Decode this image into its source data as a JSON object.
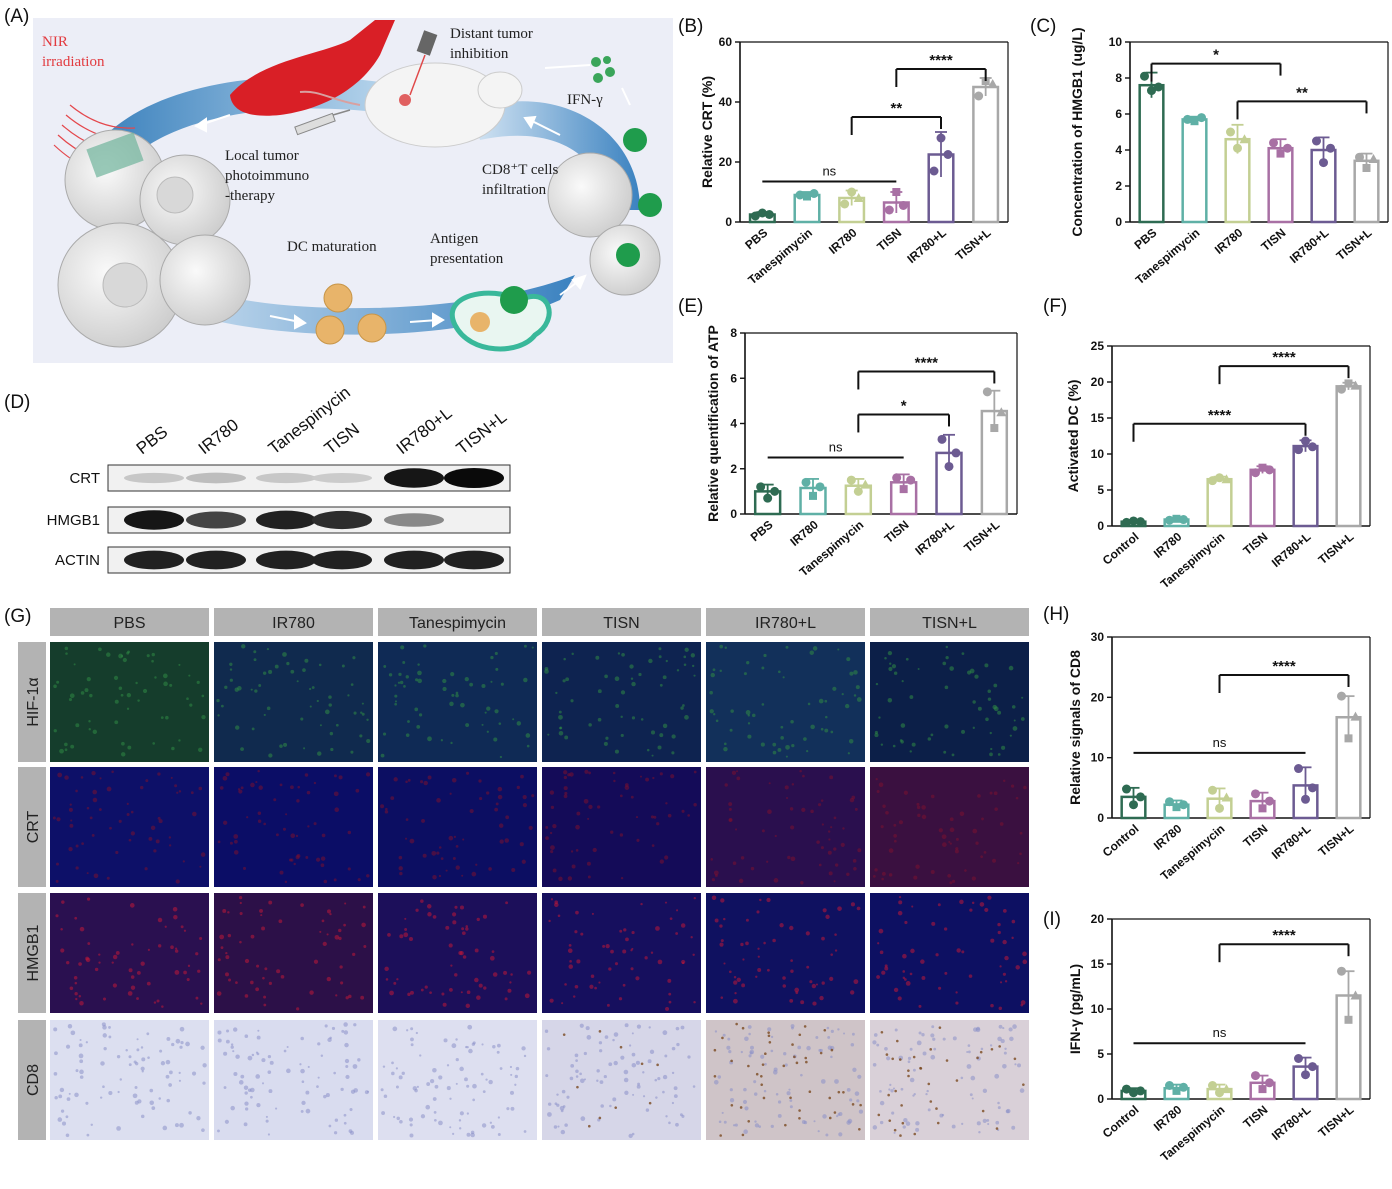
{
  "panels": {
    "A": {
      "letter": "(A)",
      "labels": {
        "nir": "NIR\nirradiation",
        "distant": "Distant tumor\ninhibition",
        "ifn": "IFN-γ",
        "local": "Local tumor\nphotoimmuno\n-therapy",
        "cd8": "CD8⁺T cells\ninfiltration",
        "dc": "DC maturation",
        "antigen": "Antigen\npresentation"
      }
    },
    "D": {
      "letter": "(D)",
      "lanes": [
        "PBS",
        "IR780",
        "Tanespinycin",
        "TISN",
        "IR780+L",
        "TISN+L"
      ],
      "rows": [
        "CRT",
        "HMGB1",
        "ACTIN"
      ]
    },
    "G": {
      "letter": "(G)",
      "columns": [
        "PBS",
        "IR780",
        "Tanespimycin",
        "TISN",
        "IR780+L",
        "TISN+L"
      ],
      "rows": [
        "HIF-1α",
        "CRT",
        "HMGB1",
        "CD8"
      ]
    }
  },
  "colors": [
    "#2e6b52",
    "#5fb0a6",
    "#c3cf93",
    "#a870a4",
    "#6c5b92",
    "#a8a8a8"
  ],
  "chart_data": [
    {
      "id": "B",
      "letter": "(B)",
      "type": "bar",
      "ylabel": "Relative CRT (%)",
      "ylim": [
        0,
        60
      ],
      "yticks": [
        0,
        20,
        40,
        60
      ],
      "categories": [
        "PBS",
        "Tanespimycin",
        "IR780",
        "TISN",
        "IR780+L",
        "TISN+L"
      ],
      "values": [
        2.5,
        9,
        8,
        6.5,
        22.5,
        45
      ],
      "errors": [
        0.8,
        1,
        2.5,
        3.5,
        7.5,
        3
      ],
      "points": [
        [
          2,
          3,
          2.5
        ],
        [
          9,
          8.5,
          9.5
        ],
        [
          6,
          10,
          8
        ],
        [
          4,
          10,
          5.5
        ],
        [
          17,
          28,
          22.5
        ],
        [
          42,
          47,
          46
        ]
      ],
      "sig": [
        {
          "from": 0,
          "to": 3,
          "label": "ns",
          "y": 13.5
        },
        {
          "from": 2,
          "to": 4,
          "label": "**",
          "y": 35
        },
        {
          "from": 3,
          "to": 5,
          "label": "****",
          "y": 51
        }
      ]
    },
    {
      "id": "C",
      "letter": "(C)",
      "type": "bar",
      "ylabel": "Concentration of HMGB1 (ug/L)",
      "ylim": [
        0,
        10
      ],
      "yticks": [
        0,
        2,
        4,
        6,
        8,
        10
      ],
      "categories": [
        "PBS",
        "Tanespimycin",
        "IR780",
        "TISN",
        "IR780+L",
        "TISN+L"
      ],
      "values": [
        7.6,
        5.7,
        4.6,
        4.1,
        4.0,
        3.4
      ],
      "errors": [
        0.7,
        0.15,
        0.8,
        0.5,
        0.7,
        0.4
      ],
      "points": [
        [
          8.1,
          7.3,
          7.5
        ],
        [
          5.7,
          5.6,
          5.8
        ],
        [
          5.0,
          4.1,
          4.6
        ],
        [
          4.4,
          3.8,
          4.1
        ],
        [
          4.5,
          3.3,
          4.1
        ],
        [
          3.6,
          3.0,
          3.5
        ]
      ],
      "sig": [
        {
          "from": 0,
          "to": 3,
          "label": "*",
          "y": 8.8
        },
        {
          "from": 2,
          "to": 5,
          "label": "**",
          "y": 6.7
        }
      ]
    },
    {
      "id": "E",
      "letter": "(E)",
      "type": "bar",
      "ylabel": "Relative quentification of ATP",
      "ylim": [
        0,
        8
      ],
      "yticks": [
        0,
        2,
        4,
        6,
        8
      ],
      "categories": [
        "PBS",
        "IR780",
        "Tanespimycin",
        "TISN",
        "IR780+L",
        "TISN+L"
      ],
      "values": [
        1.0,
        1.15,
        1.25,
        1.4,
        2.7,
        4.55
      ],
      "errors": [
        0.3,
        0.4,
        0.3,
        0.35,
        0.8,
        0.9
      ],
      "points": [
        [
          1.2,
          0.7,
          1.0
        ],
        [
          1.4,
          0.8,
          1.2
        ],
        [
          1.5,
          1.0,
          1.3
        ],
        [
          1.6,
          1.1,
          1.5
        ],
        [
          3.3,
          2.1,
          2.7
        ],
        [
          5.4,
          3.8,
          4.5
        ]
      ],
      "sig": [
        {
          "from": 0,
          "to": 3,
          "label": "ns",
          "y": 2.5
        },
        {
          "from": 2,
          "to": 4,
          "label": "*",
          "y": 4.4
        },
        {
          "from": 2,
          "to": 5,
          "label": "****",
          "y": 6.3
        }
      ]
    },
    {
      "id": "F",
      "letter": "(F)",
      "type": "bar",
      "ylabel": "Activated DC (%)",
      "ylim": [
        0,
        25
      ],
      "yticks": [
        0,
        5,
        10,
        15,
        20,
        25
      ],
      "categories": [
        "Control",
        "IR780",
        "Tanespimycin",
        "TISN",
        "IR780+L",
        "TISN+L"
      ],
      "values": [
        0.6,
        0.9,
        6.5,
        7.8,
        11.1,
        19.4
      ],
      "errors": [
        0.2,
        0.25,
        0.35,
        0.5,
        0.8,
        0.5
      ],
      "points": [
        [
          0.5,
          0.7,
          0.6
        ],
        [
          0.8,
          1.0,
          0.9
        ],
        [
          6.3,
          6.7,
          6.5
        ],
        [
          7.4,
          8.1,
          7.8
        ],
        [
          10.6,
          11.8,
          11.0
        ],
        [
          19.0,
          19.8,
          19.5
        ]
      ],
      "sig": [
        {
          "from": 0,
          "to": 4,
          "label": "****",
          "y": 14.2
        },
        {
          "from": 2,
          "to": 5,
          "label": "****",
          "y": 22.2
        }
      ]
    },
    {
      "id": "H",
      "letter": "(H)",
      "type": "bar",
      "ylabel": "Relative signals of CD8",
      "ylim": [
        0,
        30
      ],
      "yticks": [
        0,
        10,
        20,
        30
      ],
      "categories": [
        "Control",
        "IR780",
        "Tanespimycin",
        "TISN",
        "IR780+L",
        "TISN+L"
      ],
      "values": [
        3.5,
        2.2,
        3.2,
        2.8,
        5.4,
        16.7
      ],
      "errors": [
        1.5,
        0.7,
        1.7,
        1.4,
        3.0,
        3.5
      ],
      "points": [
        [
          4.8,
          2.2,
          3.5
        ],
        [
          2.7,
          1.8,
          2.2
        ],
        [
          4.6,
          1.6,
          3.4
        ],
        [
          4.0,
          1.6,
          2.8
        ],
        [
          8.2,
          3.1,
          5.0
        ],
        [
          20.2,
          13.2,
          16.8
        ]
      ],
      "sig": [
        {
          "from": 0,
          "to": 4,
          "label": "ns",
          "y": 10.8
        },
        {
          "from": 2,
          "to": 5,
          "label": "****",
          "y": 23.7
        }
      ]
    },
    {
      "id": "I",
      "letter": "(I)",
      "type": "bar",
      "ylabel": "IFN-γ (pg/mL)",
      "ylim": [
        0,
        20
      ],
      "yticks": [
        0,
        5,
        10,
        15,
        20
      ],
      "categories": [
        "Control",
        "IR780",
        "Tanespimycin",
        "TISN",
        "IR780+L",
        "TISN+L"
      ],
      "values": [
        0.9,
        1.2,
        1.1,
        1.8,
        3.6,
        11.5
      ],
      "errors": [
        0.3,
        0.4,
        0.5,
        0.8,
        1.0,
        2.7
      ],
      "points": [
        [
          1.1,
          0.7,
          0.9
        ],
        [
          1.5,
          0.9,
          1.3
        ],
        [
          1.5,
          0.7,
          1.1
        ],
        [
          2.6,
          1.1,
          1.8
        ],
        [
          4.5,
          2.7,
          3.6
        ],
        [
          14.2,
          8.8,
          11.5
        ]
      ],
      "sig": [
        {
          "from": 0,
          "to": 4,
          "label": "ns",
          "y": 6.2
        },
        {
          "from": 2,
          "to": 5,
          "label": "****",
          "y": 17.2
        }
      ]
    }
  ]
}
